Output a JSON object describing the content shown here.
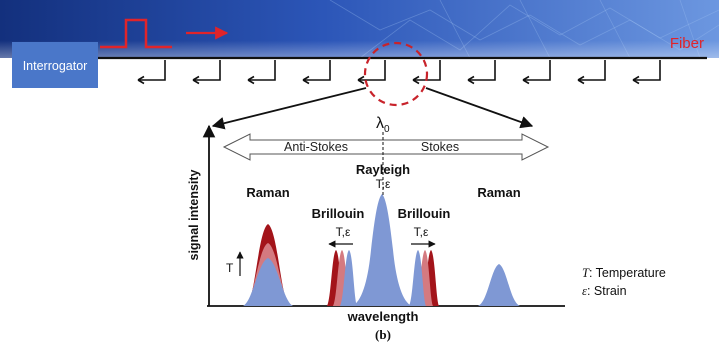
{
  "header": {
    "interrogator_label": "Interrogator",
    "fiber_label": "Fiber"
  },
  "diagram": {
    "lambda_label": "λ",
    "lambda_sub": "0",
    "anti_stokes_label": "Anti-Stokes",
    "stokes_label": "Stokes",
    "rayleigh_label": "Rayleigh",
    "rayleigh_dep": "T,ε",
    "raman_left_label": "Raman",
    "raman_right_label": "Raman",
    "brillouin_left_label": "Brillouin",
    "brillouin_right_label": "Brillouin",
    "brillouin_left_dep": "T,ε",
    "brillouin_right_dep": "T,ε",
    "t_arrow_label": "T",
    "y_axis_label": "signal intensity",
    "x_axis_label": "wavelength",
    "caption": "(b)"
  },
  "legend": {
    "temperature_symbol": "T",
    "temperature_text": ": Temperature",
    "strain_symbol": "ε",
    "strain_text": ": Strain"
  },
  "colors": {
    "banner_dark": "#1c3a8a",
    "banner_light": "#4f7fd6",
    "interrogator_box": "#4a77c9",
    "pulse_red": "#e0242a",
    "circle_red": "#c8232b",
    "peak_blue": "#7f98d4",
    "peak_dark_red": "#a3141a",
    "peak_light_red": "#d47a80"
  }
}
